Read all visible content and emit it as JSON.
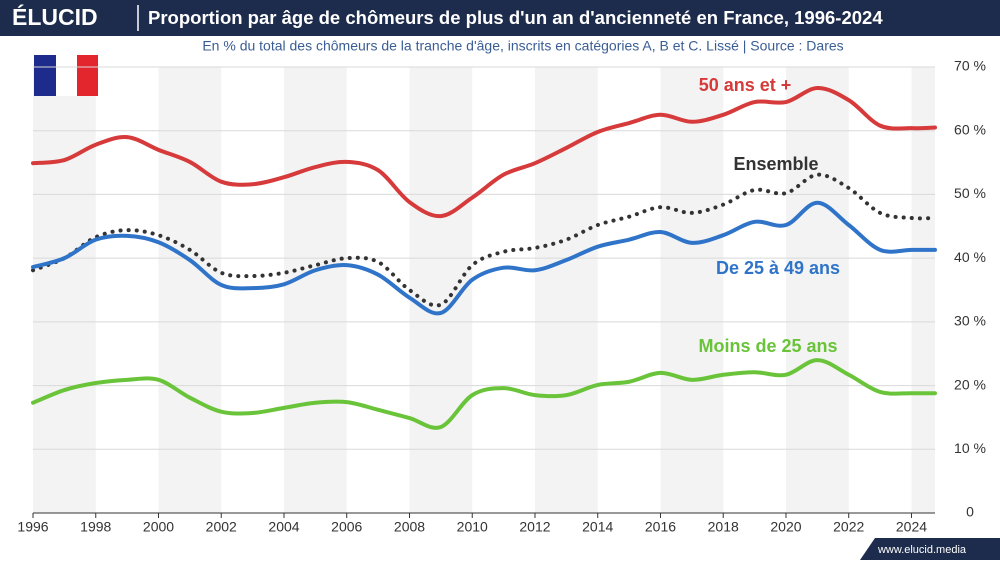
{
  "brand": "ÉLUCID",
  "footer": "www.elucid.media",
  "chart_data": {
    "type": "line",
    "title": "Proportion par âge de chômeurs de plus d'un an d'ancienneté en France, 1996-2024",
    "subtitle": "En % du total des chômeurs de la tranche d'âge, inscrits en catégories A, B et C. Lissé  |  Source : Dares",
    "x": [
      1996,
      1997,
      1998,
      1999,
      2000,
      2001,
      2002,
      2003,
      2004,
      2005,
      2006,
      2007,
      2008,
      2009,
      2010,
      2011,
      2012,
      2013,
      2014,
      2015,
      2016,
      2017,
      2018,
      2019,
      2020,
      2021,
      2022,
      2023,
      2024,
      2024.75
    ],
    "series": [
      {
        "name": "50 ans et +",
        "color": "#d63a3a",
        "line_style": "solid",
        "values": [
          54.9,
          55.4,
          57.8,
          59.0,
          57.0,
          55.1,
          52.0,
          51.6,
          52.7,
          54.3,
          55.1,
          53.8,
          48.8,
          46.6,
          49.5,
          53.1,
          54.9,
          57.3,
          59.8,
          61.2,
          62.5,
          61.4,
          62.5,
          64.5,
          64.5,
          66.7,
          64.8,
          60.8,
          60.4,
          60.5
        ]
      },
      {
        "name": "Ensemble",
        "color": "#333333",
        "line_style": "dotted",
        "values": [
          38.1,
          40.0,
          43.3,
          44.4,
          43.6,
          41.3,
          37.7,
          37.2,
          37.7,
          38.9,
          40.0,
          39.4,
          35.0,
          32.7,
          38.9,
          41.0,
          41.6,
          42.9,
          45.2,
          46.5,
          48.0,
          47.1,
          48.4,
          50.7,
          50.2,
          53.1,
          51.0,
          47.1,
          46.3,
          46.3
        ]
      },
      {
        "name": "De 25 à 49 ans",
        "color": "#2f74c8",
        "line_style": "solid",
        "values": [
          38.6,
          40.0,
          42.9,
          43.5,
          42.5,
          39.7,
          35.8,
          35.3,
          35.9,
          38.1,
          38.9,
          37.4,
          33.8,
          31.4,
          36.6,
          38.5,
          38.1,
          39.7,
          41.8,
          42.9,
          44.1,
          42.4,
          43.6,
          45.7,
          45.2,
          48.7,
          45.2,
          41.3,
          41.3,
          41.3
        ]
      },
      {
        "name": "Moins de 25 ans",
        "color": "#6ac43a",
        "line_style": "solid",
        "values": [
          17.3,
          19.3,
          20.4,
          20.9,
          20.9,
          18.1,
          15.9,
          15.7,
          16.5,
          17.3,
          17.4,
          16.2,
          14.9,
          13.5,
          18.5,
          19.6,
          18.5,
          18.5,
          20.1,
          20.6,
          22.0,
          20.9,
          21.7,
          22.1,
          21.7,
          24.0,
          21.7,
          19.0,
          18.8,
          18.8
        ]
      }
    ],
    "xlim": [
      1996,
      2024.75
    ],
    "xticks": [
      1996,
      1998,
      2000,
      2002,
      2004,
      2006,
      2008,
      2010,
      2012,
      2014,
      2016,
      2018,
      2020,
      2022,
      2024
    ],
    "ylim": [
      0,
      70
    ],
    "yticks": [
      0,
      {
        "value": 10,
        "label": "10 %"
      },
      {
        "value": 20,
        "label": "20 %"
      },
      {
        "value": 30,
        "label": "30 %"
      },
      {
        "value": 40,
        "label": "40 %"
      },
      {
        "value": 50,
        "label": "50 %"
      },
      {
        "value": 60,
        "label": "60 %"
      },
      {
        "value": 70,
        "label": "70 %"
      }
    ],
    "grid": true
  }
}
